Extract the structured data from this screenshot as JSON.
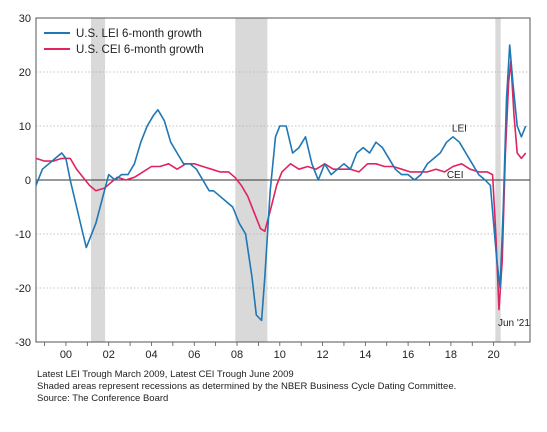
{
  "chart_data": {
    "type": "line",
    "xlim": [
      1998.6,
      2021.7
    ],
    "ylim": [
      -30,
      30
    ],
    "yticks": [
      -30,
      -20,
      -10,
      0,
      10,
      20,
      30
    ],
    "xticks": [
      {
        "x": 2000,
        "label": "00"
      },
      {
        "x": 2002,
        "label": "02"
      },
      {
        "x": 2004,
        "label": "04"
      },
      {
        "x": 2006,
        "label": "06"
      },
      {
        "x": 2008,
        "label": "08"
      },
      {
        "x": 2010,
        "label": "10"
      },
      {
        "x": 2012,
        "label": "12"
      },
      {
        "x": 2014,
        "label": "14"
      },
      {
        "x": 2016,
        "label": "16"
      },
      {
        "x": 2018,
        "label": "18"
      },
      {
        "x": 2020,
        "label": "20"
      }
    ],
    "recessions": [
      [
        2001.17,
        2001.83
      ],
      [
        2007.92,
        2009.42
      ],
      [
        2020.08,
        2020.33
      ]
    ],
    "legend_placement": "top-left",
    "series": [
      {
        "name": "U.S. LEI 6-month growth",
        "color": "#1f77b4",
        "points": [
          [
            1998.6,
            -1
          ],
          [
            1998.9,
            2
          ],
          [
            1999.2,
            3
          ],
          [
            1999.5,
            4
          ],
          [
            1999.8,
            5
          ],
          [
            2000.0,
            4
          ],
          [
            2000.2,
            0
          ],
          [
            2000.5,
            -5
          ],
          [
            2000.8,
            -10
          ],
          [
            2000.95,
            -12.5
          ],
          [
            2001.1,
            -11
          ],
          [
            2001.4,
            -8
          ],
          [
            2001.8,
            -2
          ],
          [
            2002.0,
            1
          ],
          [
            2002.3,
            0
          ],
          [
            2002.6,
            1
          ],
          [
            2002.9,
            1
          ],
          [
            2003.2,
            3
          ],
          [
            2003.5,
            7
          ],
          [
            2003.8,
            10
          ],
          [
            2004.1,
            12
          ],
          [
            2004.3,
            13
          ],
          [
            2004.6,
            11
          ],
          [
            2004.9,
            7
          ],
          [
            2005.2,
            5
          ],
          [
            2005.5,
            3
          ],
          [
            2005.8,
            3
          ],
          [
            2006.1,
            2
          ],
          [
            2006.4,
            0
          ],
          [
            2006.7,
            -2
          ],
          [
            2006.9,
            -2
          ],
          [
            2007.2,
            -3
          ],
          [
            2007.5,
            -4
          ],
          [
            2007.8,
            -5
          ],
          [
            2008.1,
            -8
          ],
          [
            2008.4,
            -10
          ],
          [
            2008.7,
            -18
          ],
          [
            2008.9,
            -25
          ],
          [
            2009.15,
            -26
          ],
          [
            2009.3,
            -18
          ],
          [
            2009.55,
            -2
          ],
          [
            2009.8,
            8
          ],
          [
            2010.0,
            10
          ],
          [
            2010.3,
            10
          ],
          [
            2010.6,
            5
          ],
          [
            2010.9,
            6
          ],
          [
            2011.2,
            8
          ],
          [
            2011.5,
            3
          ],
          [
            2011.8,
            0
          ],
          [
            2012.1,
            3
          ],
          [
            2012.4,
            1
          ],
          [
            2012.7,
            2
          ],
          [
            2013.0,
            3
          ],
          [
            2013.3,
            2
          ],
          [
            2013.6,
            5
          ],
          [
            2013.9,
            6
          ],
          [
            2014.2,
            5
          ],
          [
            2014.5,
            7
          ],
          [
            2014.8,
            6
          ],
          [
            2015.1,
            4
          ],
          [
            2015.4,
            2
          ],
          [
            2015.7,
            1
          ],
          [
            2016.0,
            1
          ],
          [
            2016.3,
            0
          ],
          [
            2016.6,
            1
          ],
          [
            2016.9,
            3
          ],
          [
            2017.2,
            4
          ],
          [
            2017.5,
            5
          ],
          [
            2017.8,
            7
          ],
          [
            2018.1,
            8
          ],
          [
            2018.4,
            7
          ],
          [
            2018.7,
            5
          ],
          [
            2019.0,
            3
          ],
          [
            2019.3,
            1
          ],
          [
            2019.6,
            0
          ],
          [
            2019.85,
            -1
          ],
          [
            2020.0,
            -8
          ],
          [
            2020.15,
            -15
          ],
          [
            2020.3,
            -20
          ],
          [
            2020.45,
            -5
          ],
          [
            2020.6,
            15
          ],
          [
            2020.75,
            25
          ],
          [
            2020.9,
            18
          ],
          [
            2021.1,
            10
          ],
          [
            2021.3,
            8
          ],
          [
            2021.5,
            10
          ]
        ]
      },
      {
        "name": "U.S. CEI 6-month growth",
        "color": "#e0245e",
        "points": [
          [
            1998.6,
            4
          ],
          [
            1999.0,
            3.5
          ],
          [
            1999.4,
            3.5
          ],
          [
            1999.8,
            4
          ],
          [
            2000.2,
            4
          ],
          [
            2000.5,
            2
          ],
          [
            2000.8,
            0.5
          ],
          [
            2001.1,
            -1
          ],
          [
            2001.4,
            -2
          ],
          [
            2001.8,
            -1.5
          ],
          [
            2002.1,
            -0.5
          ],
          [
            2002.4,
            0.5
          ],
          [
            2002.8,
            0
          ],
          [
            2003.2,
            0.5
          ],
          [
            2003.6,
            1.5
          ],
          [
            2004.0,
            2.5
          ],
          [
            2004.4,
            2.5
          ],
          [
            2004.8,
            3
          ],
          [
            2005.2,
            2
          ],
          [
            2005.6,
            3
          ],
          [
            2006.0,
            3
          ],
          [
            2006.4,
            2.5
          ],
          [
            2006.8,
            2
          ],
          [
            2007.2,
            1.5
          ],
          [
            2007.6,
            1.5
          ],
          [
            2007.9,
            0.5
          ],
          [
            2008.2,
            -1
          ],
          [
            2008.5,
            -3
          ],
          [
            2008.8,
            -6
          ],
          [
            2009.1,
            -9
          ],
          [
            2009.3,
            -9.5
          ],
          [
            2009.6,
            -5
          ],
          [
            2009.85,
            -1
          ],
          [
            2010.1,
            1.5
          ],
          [
            2010.5,
            3
          ],
          [
            2010.9,
            2
          ],
          [
            2011.3,
            2.5
          ],
          [
            2011.7,
            2
          ],
          [
            2012.1,
            3
          ],
          [
            2012.5,
            2
          ],
          [
            2012.9,
            2
          ],
          [
            2013.3,
            2
          ],
          [
            2013.7,
            1.5
          ],
          [
            2014.1,
            3
          ],
          [
            2014.5,
            3
          ],
          [
            2014.9,
            2.5
          ],
          [
            2015.3,
            2.5
          ],
          [
            2015.7,
            2
          ],
          [
            2016.1,
            1.5
          ],
          [
            2016.5,
            1.5
          ],
          [
            2016.9,
            1.5
          ],
          [
            2017.3,
            2
          ],
          [
            2017.7,
            1.5
          ],
          [
            2018.1,
            2.5
          ],
          [
            2018.5,
            3
          ],
          [
            2018.9,
            2
          ],
          [
            2019.3,
            1.5
          ],
          [
            2019.7,
            1.5
          ],
          [
            2019.95,
            1
          ],
          [
            2020.1,
            -10
          ],
          [
            2020.25,
            -24
          ],
          [
            2020.4,
            -15
          ],
          [
            2020.55,
            5
          ],
          [
            2020.7,
            18
          ],
          [
            2020.8,
            22
          ],
          [
            2020.95,
            12
          ],
          [
            2021.1,
            5
          ],
          [
            2021.3,
            4
          ],
          [
            2021.5,
            5
          ]
        ]
      }
    ],
    "annotations": [
      {
        "text": "LEI",
        "x": 2018.4,
        "y": 9
      },
      {
        "text": "CEI",
        "x": 2018.2,
        "y": 0.4
      },
      {
        "text": "Jun '21",
        "x": 2020.95,
        "y": -27
      }
    ]
  },
  "notes": [
    "Latest LEI Trough March 2009, Latest CEI Trough June 2009",
    "Shaded areas represent recessions as determined by the NBER Business Cycle Dating Committee.",
    "Source: The Conference Board"
  ]
}
